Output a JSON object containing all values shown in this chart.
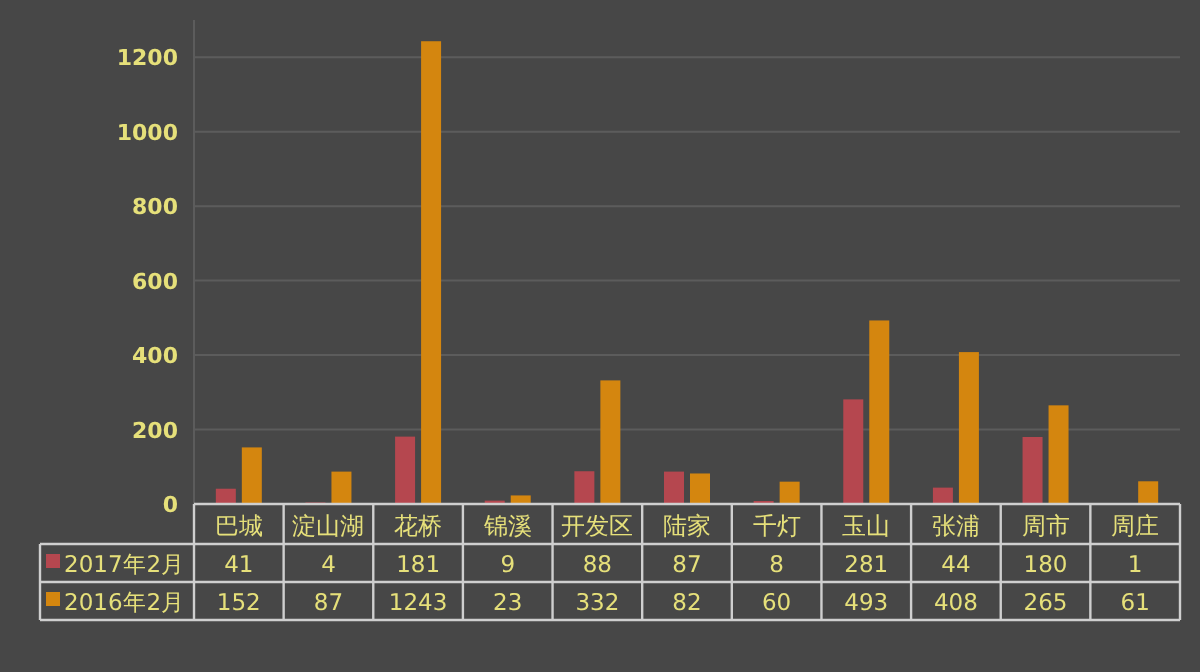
{
  "chart_data": {
    "type": "bar",
    "categories": [
      "巴城",
      "淀山湖",
      "花桥",
      "锦溪",
      "开发区",
      "陆家",
      "千灯",
      "玉山",
      "张浦",
      "周市",
      "周庄"
    ],
    "series": [
      {
        "name": "2017年2月",
        "color": "#b5474f",
        "values": [
          41,
          4,
          181,
          9,
          88,
          87,
          8,
          281,
          44,
          180,
          1
        ]
      },
      {
        "name": "2016年2月",
        "color": "#d4860f",
        "values": [
          152,
          87,
          1243,
          23,
          332,
          82,
          60,
          493,
          408,
          265,
          61
        ]
      }
    ],
    "ylim": [
      0,
      1300
    ],
    "yticks": [
      0,
      200,
      400,
      600,
      800,
      1000,
      1200
    ],
    "grid": "y",
    "data_labels": true,
    "legend": "bottom left"
  }
}
